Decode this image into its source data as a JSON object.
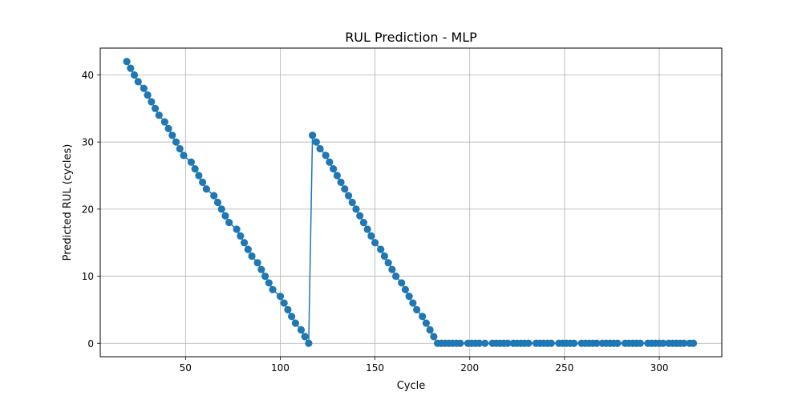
{
  "chart_data": {
    "type": "line",
    "title": "RUL Prediction - MLP",
    "xlabel": "Cycle",
    "ylabel": "Predicted RUL (cycles)",
    "xlim": [
      5,
      333
    ],
    "ylim": [
      -2,
      44
    ],
    "xticks": [
      50,
      100,
      150,
      200,
      250,
      300
    ],
    "yticks": [
      0,
      10,
      20,
      30,
      40
    ],
    "grid": true,
    "series": [
      {
        "color": "#1f77b4",
        "marker": "circle",
        "x": [
          19,
          21,
          23,
          25,
          28,
          30,
          32,
          34,
          36,
          39,
          41,
          43,
          45,
          47,
          49,
          53,
          55,
          57,
          59,
          61,
          65,
          67,
          69,
          71,
          73,
          77,
          79,
          81,
          83,
          85,
          88,
          90,
          92,
          94,
          96,
          100,
          102,
          104,
          106,
          108,
          111,
          113,
          115,
          117,
          119,
          121,
          124,
          126,
          128,
          130,
          132,
          134,
          136,
          138,
          140,
          142,
          144,
          146,
          148,
          150,
          153,
          155,
          157,
          159,
          161,
          164,
          166,
          168,
          170,
          172,
          175,
          177,
          179,
          181,
          183,
          185,
          187,
          189,
          191,
          193,
          195,
          199,
          201,
          203,
          205,
          208,
          212,
          214,
          216,
          218,
          220,
          223,
          225,
          227,
          229,
          231,
          235,
          237,
          239,
          241,
          243,
          247,
          249,
          251,
          253,
          255,
          259,
          261,
          263,
          265,
          267,
          270,
          272,
          274,
          276,
          278,
          282,
          284,
          286,
          288,
          290,
          294,
          296,
          298,
          300,
          302,
          305,
          307,
          309,
          311,
          313,
          316,
          318
        ],
        "y": [
          42,
          41,
          40,
          39,
          38,
          37,
          36,
          35,
          34,
          33,
          32,
          31,
          30,
          29,
          28,
          27,
          26,
          25,
          24,
          23,
          22,
          21,
          20,
          19,
          18,
          17,
          16,
          15,
          14,
          13,
          12,
          11,
          10,
          9,
          8,
          7,
          6,
          5,
          4,
          3,
          2,
          1,
          0,
          31,
          30,
          29,
          28,
          27,
          26,
          25,
          24,
          23,
          22,
          21,
          20,
          19,
          18,
          17,
          16,
          15,
          14,
          13,
          12,
          11,
          10,
          9,
          8,
          7,
          6,
          5,
          4,
          3,
          2,
          1,
          0,
          0,
          0,
          0,
          0,
          0,
          0,
          0,
          0,
          0,
          0,
          0,
          0,
          0,
          0,
          0,
          0,
          0,
          0,
          0,
          0,
          0,
          0,
          0,
          0,
          0,
          0,
          0,
          0,
          0,
          0,
          0,
          0,
          0,
          0,
          0,
          0,
          0,
          0,
          0,
          0,
          0,
          0,
          0,
          0,
          0,
          0,
          0,
          0,
          0,
          0,
          0,
          0,
          0,
          0,
          0,
          0,
          0,
          0
        ]
      }
    ]
  }
}
